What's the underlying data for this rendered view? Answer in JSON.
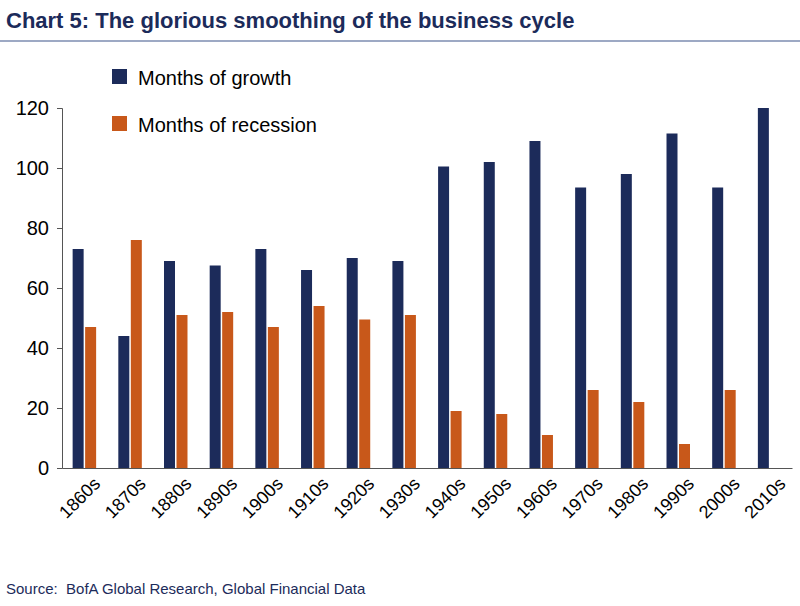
{
  "chart_data": {
    "type": "bar",
    "title": "Chart 5: The glorious smoothing of the business cycle",
    "source": "Source:  BofA Global Research, Global Financial Data",
    "categories": [
      "1860s",
      "1870s",
      "1880s",
      "1890s",
      "1900s",
      "1910s",
      "1920s",
      "1930s",
      "1940s",
      "1950s",
      "1960s",
      "1970s",
      "1980s",
      "1990s",
      "2000s",
      "2010s"
    ],
    "series": [
      {
        "name": "Months of growth",
        "color": "#1c2b5a",
        "values": [
          73,
          44,
          69,
          67.5,
          73,
          66,
          70,
          69,
          100.5,
          102,
          109,
          93.5,
          98,
          111.5,
          93.5,
          120
        ]
      },
      {
        "name": "Months of recession",
        "color": "#c8581a",
        "values": [
          47,
          76,
          51,
          52,
          47,
          54,
          49.5,
          51,
          19,
          18,
          11,
          26,
          22,
          8,
          26,
          0
        ]
      }
    ],
    "ylim": [
      0,
      120
    ],
    "yticks": [
      0,
      20,
      40,
      60,
      80,
      100,
      120
    ],
    "grid": false,
    "legend": "upper left",
    "data_labels": false
  }
}
